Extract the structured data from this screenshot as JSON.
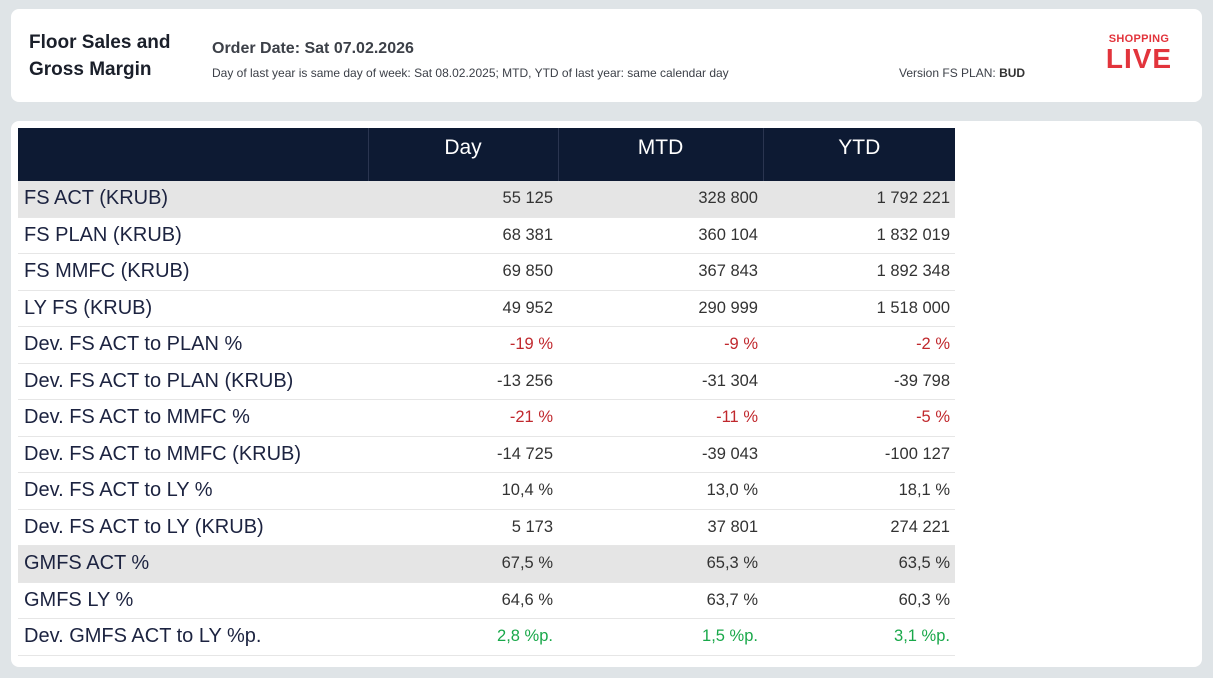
{
  "header": {
    "title_line1": "Floor Sales and",
    "title_line2": "Gross Margin",
    "order_date": "Order Date: Sat 07.02.2026",
    "subtitle": "Day of last year is same day of week: Sat 08.02.2025; MTD, YTD of last year: same calendar day",
    "version_label": "Version FS PLAN:",
    "version_value": "BUD",
    "logo_line1": "SHOPPING",
    "logo_line2": "LIVE"
  },
  "colors": {
    "header_bg": "#0d1a33",
    "negative": "#c0282d",
    "positive": "#19a84a",
    "logo": "#e2343c",
    "shaded_row": "#e5e5e5"
  },
  "table": {
    "columns": [
      "",
      "Day",
      "MTD",
      "YTD"
    ],
    "rows": [
      {
        "label": "FS ACT (KRUB)",
        "day": "55 125",
        "mtd": "328 800",
        "ytd": "1 792 221",
        "shaded": true,
        "tone": ""
      },
      {
        "label": "FS PLAN (KRUB)",
        "day": "68 381",
        "mtd": "360 104",
        "ytd": "1 832 019",
        "shaded": false,
        "tone": ""
      },
      {
        "label": "FS MMFC (KRUB)",
        "day": "69 850",
        "mtd": "367 843",
        "ytd": "1 892 348",
        "shaded": false,
        "tone": ""
      },
      {
        "label": "LY FS (KRUB)",
        "day": "49 952",
        "mtd": "290 999",
        "ytd": "1 518 000",
        "shaded": false,
        "tone": ""
      },
      {
        "label": "Dev. FS ACT to PLAN %",
        "day": "-19 %",
        "mtd": "-9 %",
        "ytd": "-2 %",
        "shaded": false,
        "tone": "neg"
      },
      {
        "label": "Dev. FS ACT to PLAN (KRUB)",
        "day": "-13 256",
        "mtd": "-31 304",
        "ytd": "-39 798",
        "shaded": false,
        "tone": ""
      },
      {
        "label": "Dev. FS ACT to MMFC %",
        "day": "-21 %",
        "mtd": "-11 %",
        "ytd": "-5 %",
        "shaded": false,
        "tone": "neg"
      },
      {
        "label": "Dev. FS ACT to MMFC (KRUB)",
        "day": "-14 725",
        "mtd": "-39 043",
        "ytd": "-100 127",
        "shaded": false,
        "tone": ""
      },
      {
        "label": "Dev. FS ACT to LY %",
        "day": "10,4 %",
        "mtd": "13,0 %",
        "ytd": "18,1 %",
        "shaded": false,
        "tone": ""
      },
      {
        "label": "Dev. FS ACT to LY (KRUB)",
        "day": "5 173",
        "mtd": "37 801",
        "ytd": "274 221",
        "shaded": false,
        "tone": ""
      },
      {
        "label": "GMFS ACT %",
        "day": "67,5 %",
        "mtd": "65,3 %",
        "ytd": "63,5 %",
        "shaded": true,
        "tone": ""
      },
      {
        "label": "GMFS LY %",
        "day": "64,6 %",
        "mtd": "63,7 %",
        "ytd": "60,3 %",
        "shaded": false,
        "tone": ""
      },
      {
        "label": "Dev. GMFS ACT to LY %p.",
        "day": "2,8 %p.",
        "mtd": "1,5 %p.",
        "ytd": "3,1 %p.",
        "shaded": false,
        "tone": "pos"
      }
    ]
  }
}
